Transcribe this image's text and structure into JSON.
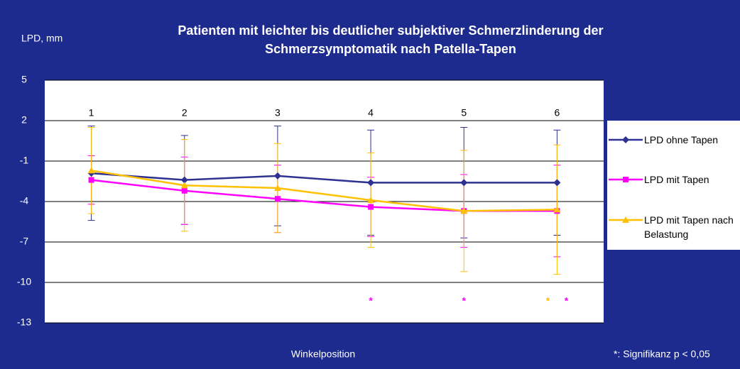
{
  "chart_data": {
    "type": "line",
    "title": "Patienten mit leichter bis deutlicher subjektiver Schmerzlinderung der Schmerzsymptomatik nach Patella-Tapen",
    "ylabel": "LPD, mm",
    "xlabel": "Winkelposition",
    "footnote": "*: Signifikanz p < 0,05",
    "significance_symbol": "*",
    "categories": [
      "1",
      "2",
      "3",
      "4",
      "5",
      "6"
    ],
    "ylim": [
      -13,
      5
    ],
    "yticks": [
      -13,
      -10,
      -7,
      -4,
      -1,
      2,
      5
    ],
    "grid": true,
    "series": [
      {
        "name": "LPD ohne Tapen",
        "color": "#2e3192",
        "marker": "diamond",
        "values": [
          -1.9,
          -2.4,
          -2.1,
          -2.6,
          -2.6,
          -2.6
        ],
        "errors": [
          3.5,
          3.3,
          3.7,
          3.9,
          4.1,
          3.9
        ],
        "significant": [
          false,
          false,
          false,
          false,
          false,
          false
        ]
      },
      {
        "name": "LPD mit Tapen",
        "color": "#ff00ff",
        "marker": "square",
        "values": [
          -2.4,
          -3.2,
          -3.8,
          -4.4,
          -4.7,
          -4.7
        ],
        "errors": [
          1.8,
          2.5,
          2.5,
          2.2,
          2.7,
          3.4
        ],
        "significant": [
          false,
          false,
          false,
          true,
          true,
          true
        ]
      },
      {
        "name": "LPD mit Tapen nach Belastung",
        "color": "#ffc000",
        "marker": "triangle",
        "values": [
          -1.7,
          -2.8,
          -3.0,
          -3.9,
          -4.7,
          -4.6
        ],
        "errors": [
          3.2,
          3.4,
          3.3,
          3.5,
          4.5,
          4.8
        ],
        "significant": [
          false,
          false,
          false,
          false,
          false,
          true
        ]
      }
    ]
  }
}
